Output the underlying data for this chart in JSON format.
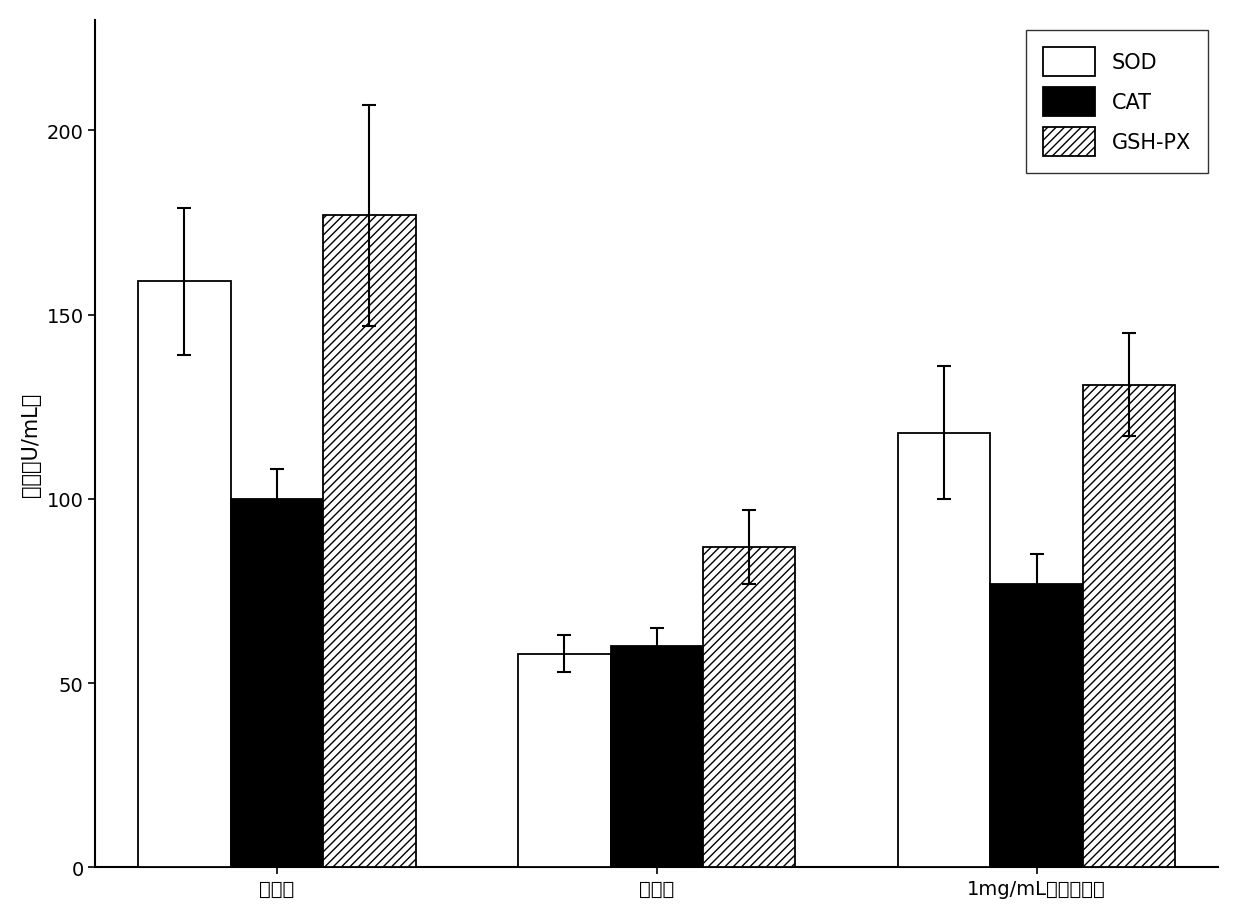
{
  "groups": [
    "正常组",
    "模型组",
    "1mg/mL免疫调节肽"
  ],
  "series": {
    "SOD": {
      "values": [
        159,
        58,
        118
      ],
      "errors": [
        20,
        5,
        18
      ],
      "color": "white",
      "edgecolor": "black",
      "hatch": ""
    },
    "CAT": {
      "values": [
        100,
        60,
        77
      ],
      "errors": [
        8,
        5,
        8
      ],
      "color": "black",
      "edgecolor": "black",
      "hatch": ""
    },
    "GSH-PX": {
      "values": [
        177,
        87,
        131
      ],
      "errors": [
        30,
        10,
        14
      ],
      "color": "white",
      "edgecolor": "black",
      "hatch": "////"
    }
  },
  "ylabel": "酶活（U/mL）",
  "ylim": [
    0,
    230
  ],
  "yticks": [
    0,
    50,
    100,
    150,
    200
  ],
  "legend_labels": [
    "SOD",
    "CAT",
    "GSH-PX"
  ],
  "legend_loc": "upper right",
  "bar_width": 0.28,
  "background_color": "white",
  "font_size": 14,
  "tick_font_size": 14,
  "legend_font_size": 15,
  "ylabel_font_size": 15
}
